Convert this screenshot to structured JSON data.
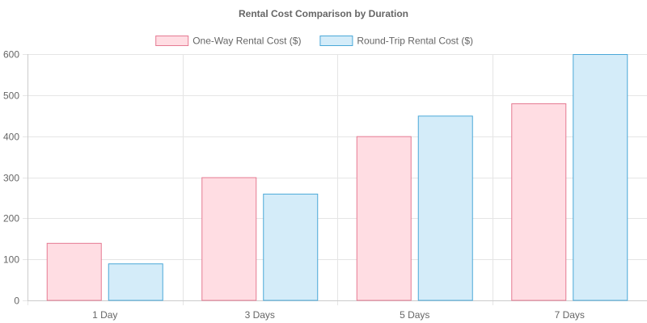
{
  "chart_data": {
    "type": "bar",
    "title": "Rental Cost Comparison by Duration",
    "xlabel": "",
    "ylabel": "",
    "categories": [
      "1 Day",
      "3 Days",
      "5 Days",
      "7 Days"
    ],
    "series": [
      {
        "name": "One-Way Rental Cost ($)",
        "values": [
          140,
          300,
          400,
          480
        ],
        "fill": "#ffdde3",
        "stroke": "#e57a92"
      },
      {
        "name": "Round-Trip Rental Cost ($)",
        "values": [
          90,
          260,
          450,
          600
        ],
        "fill": "#d4ecf9",
        "stroke": "#4aa8d8"
      }
    ],
    "ylim": [
      0,
      600
    ],
    "yticks": [
      0,
      100,
      200,
      300,
      400,
      500,
      600
    ],
    "grid": true,
    "legend": "top-center"
  }
}
